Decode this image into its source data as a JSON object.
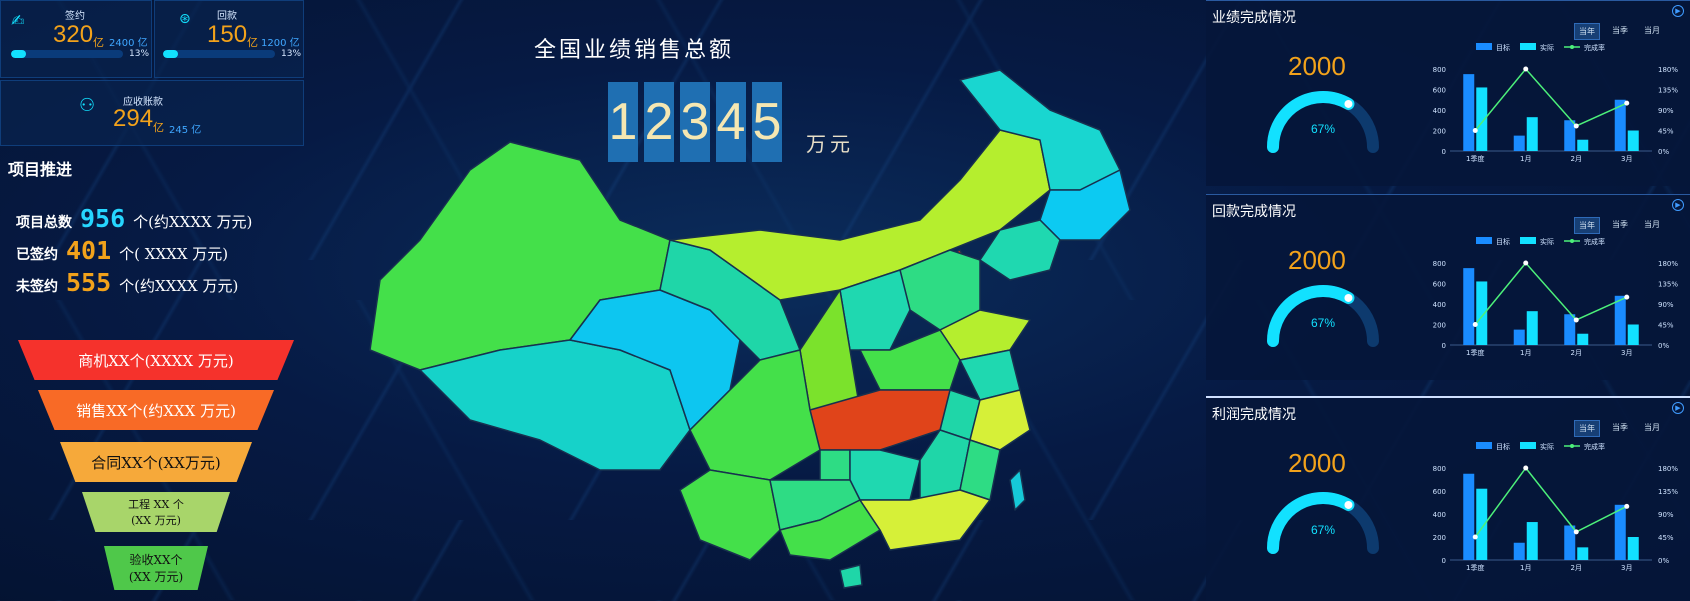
{
  "kpis": {
    "sign": {
      "label": "签约",
      "value": "320",
      "unit": "亿",
      "target": "2400 亿",
      "progress_pct": 13,
      "pct_text": "13%"
    },
    "payment": {
      "label": "回款",
      "value": "150",
      "unit": "亿",
      "target": "1200 亿",
      "progress_pct": 13,
      "pct_text": "13%"
    },
    "receivable": {
      "label": "应收账款",
      "value": "294",
      "unit": "亿",
      "target": "245 亿"
    }
  },
  "project": {
    "title": "项目推进",
    "rows": [
      {
        "label": "项目总数",
        "value": "956",
        "suffix": "个(约XXXX  万元)",
        "color": "#26d6ff"
      },
      {
        "label": "已签约",
        "value": "401",
        "suffix": "个(  XXXX  万元)",
        "color": "#f2a21b"
      },
      {
        "label": "未签约",
        "value": "555",
        "suffix": "个(约XXXX  万元)",
        "color": "#f2a21b"
      }
    ]
  },
  "funnel": [
    {
      "line1": "商机XX个(XXXX 万元)",
      "line2": "",
      "color": "#f5322c"
    },
    {
      "line1": "销售XX个(约XXX 万元)",
      "line2": "",
      "color": "#f86a26"
    },
    {
      "line1": "合同XX个(XX万元)",
      "line2": "",
      "color": "#f6a93a"
    },
    {
      "line1": "工程 XX 个",
      "line2": "(XX 万元)",
      "color": "#a8d56a"
    },
    {
      "line1": "验收XX个",
      "line2": "(XX 万元)",
      "color": "#4fc84a"
    }
  ],
  "center": {
    "title": "全国业绩销售总额",
    "digits": [
      "1",
      "2",
      "3",
      "4",
      "5"
    ],
    "unit": "万元"
  },
  "right_panels": [
    {
      "title": "业绩完成情况",
      "gauge_value": "2000",
      "gauge_pct": "67%",
      "gauge_fraction": 0.67
    },
    {
      "title": "回款完成情况",
      "gauge_value": "2000",
      "gauge_pct": "67%",
      "gauge_fraction": 0.67
    },
    {
      "title": "利润完成情况",
      "gauge_value": "2000",
      "gauge_pct": "67%",
      "gauge_fraction": 0.67
    }
  ],
  "tabs": [
    "当年",
    "当季",
    "当月"
  ],
  "legend": {
    "target": "目标",
    "actual": "实际",
    "rate": "完成率"
  },
  "chart_data": [
    {
      "type": "bar",
      "categories": [
        "1季度",
        "1月",
        "2月",
        "3月"
      ],
      "series": [
        {
          "name": "目标",
          "values": [
            750,
            150,
            300,
            500
          ]
        },
        {
          "name": "实际",
          "values": [
            620,
            330,
            110,
            200
          ]
        },
        {
          "name": "完成率",
          "values": [
            45,
            180,
            55,
            105
          ],
          "type": "line"
        }
      ],
      "ylim": [
        0,
        800
      ],
      "y2lim": [
        0,
        180
      ],
      "yticks": [
        "0",
        "200",
        "400",
        "600",
        "800"
      ],
      "y2ticks": [
        "0%",
        "45%",
        "90%",
        "135%",
        "180%"
      ]
    },
    {
      "type": "bar",
      "categories": [
        "1季度",
        "1月",
        "2月",
        "3月"
      ],
      "series": [
        {
          "name": "目标",
          "values": [
            750,
            150,
            300,
            480
          ]
        },
        {
          "name": "实际",
          "values": [
            620,
            330,
            110,
            200
          ]
        },
        {
          "name": "完成率",
          "values": [
            45,
            180,
            55,
            105
          ],
          "type": "line"
        }
      ],
      "ylim": [
        0,
        800
      ],
      "y2lim": [
        0,
        180
      ],
      "yticks": [
        "0",
        "200",
        "400",
        "600",
        "800"
      ],
      "y2ticks": [
        "0%",
        "45%",
        "90%",
        "135%",
        "180%"
      ]
    },
    {
      "type": "bar",
      "categories": [
        "1季度",
        "1月",
        "2月",
        "3月"
      ],
      "series": [
        {
          "name": "目标",
          "values": [
            750,
            150,
            300,
            480
          ]
        },
        {
          "name": "实际",
          "values": [
            620,
            330,
            110,
            200
          ]
        },
        {
          "name": "完成率",
          "values": [
            45,
            180,
            55,
            105
          ],
          "type": "line"
        }
      ],
      "ylim": [
        0,
        800
      ],
      "y2lim": [
        0,
        180
      ],
      "yticks": [
        "0",
        "200",
        "400",
        "600",
        "800"
      ],
      "y2ticks": [
        "0%",
        "45%",
        "90%",
        "135%",
        "180%"
      ]
    }
  ],
  "colors": {
    "target": "#1a8cff",
    "actual": "#12e1ff",
    "rate": "#4cf07a",
    "accent": "#f2a21b"
  }
}
